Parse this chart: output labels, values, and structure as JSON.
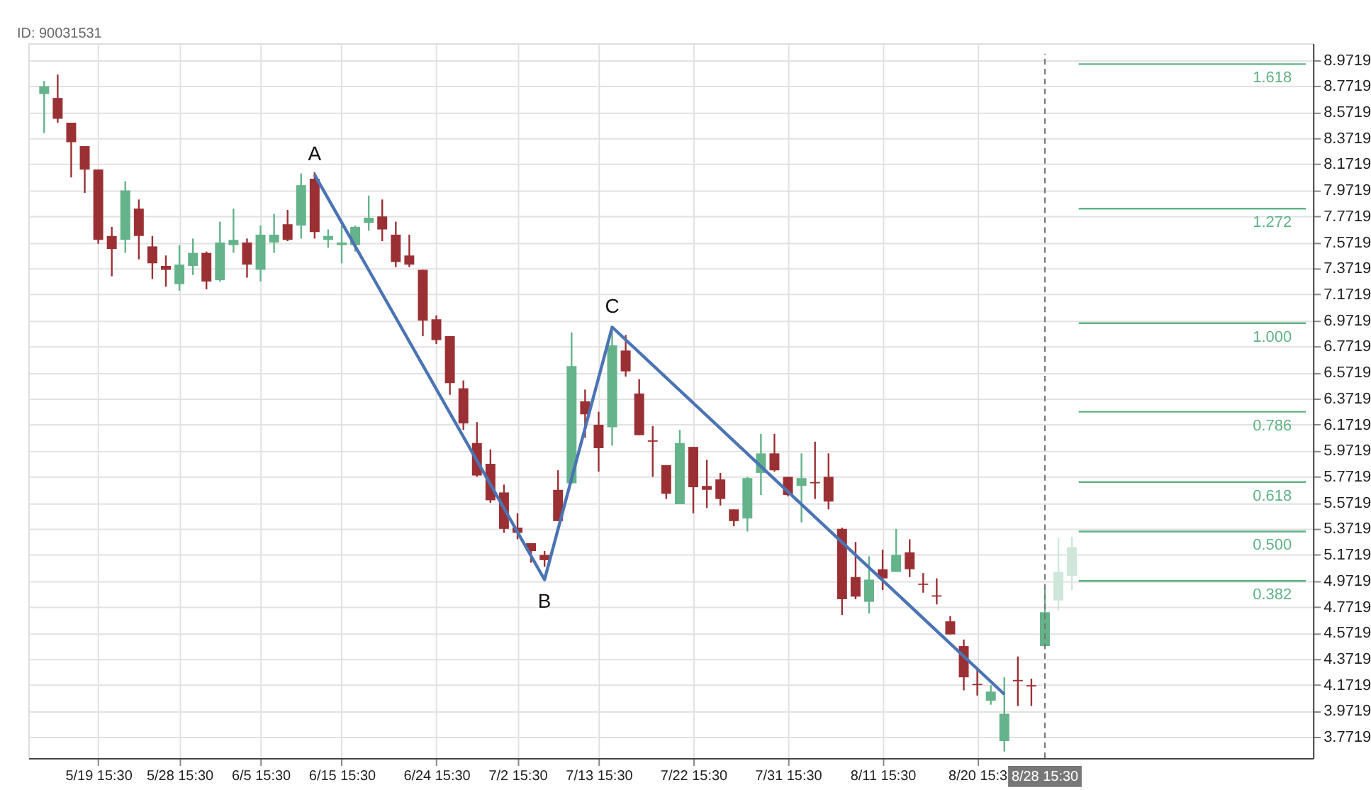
{
  "chart_data": {
    "type": "candlestick",
    "categories": [
      null,
      null,
      null,
      null,
      "5/19 15:30",
      null,
      null,
      null,
      null,
      null,
      "5/28 15:30",
      null,
      null,
      null,
      null,
      null,
      "6/5 15:30",
      null,
      null,
      null,
      null,
      null,
      "6/15 15:30",
      null,
      null,
      null,
      null,
      null,
      null,
      "6/24 15:30",
      null,
      null,
      null,
      null,
      null,
      "7/2 15:30",
      null,
      null,
      null,
      null,
      null,
      "7/13 15:30",
      null,
      null,
      null,
      null,
      null,
      null,
      "7/22 15:30",
      null,
      null,
      null,
      null,
      null,
      null,
      "7/31 15:30",
      null,
      null,
      null,
      null,
      null,
      null,
      "8/11 15:30",
      null,
      null,
      null,
      null,
      null,
      null,
      "8/20 15:3",
      null,
      null,
      null,
      null,
      "8/28 15:30",
      null,
      null,
      null,
      null,
      null,
      null,
      null,
      null,
      null,
      null,
      null,
      null,
      null,
      null,
      null,
      null,
      null,
      null,
      null
    ],
    "ohlc": [
      [
        8.71,
        8.81,
        8.41,
        8.77
      ],
      [
        8.68,
        8.86,
        8.49,
        8.52
      ],
      [
        8.49,
        8.49,
        8.07,
        8.34
      ],
      [
        8.31,
        8.31,
        7.95,
        8.13
      ],
      [
        8.13,
        8.13,
        7.56,
        7.59
      ],
      [
        7.62,
        7.69,
        7.31,
        7.52
      ],
      [
        7.59,
        8.04,
        7.49,
        7.97
      ],
      [
        7.83,
        7.9,
        7.44,
        7.62
      ],
      [
        7.54,
        7.62,
        7.29,
        7.41
      ],
      [
        7.39,
        7.47,
        7.23,
        7.36
      ],
      [
        7.25,
        7.55,
        7.2,
        7.4
      ],
      [
        7.39,
        7.6,
        7.32,
        7.49
      ],
      [
        7.49,
        7.5,
        7.21,
        7.27
      ],
      [
        7.28,
        7.73,
        7.27,
        7.57
      ],
      [
        7.55,
        7.83,
        7.49,
        7.59
      ],
      [
        7.57,
        7.6,
        7.3,
        7.4
      ],
      [
        7.36,
        7.7,
        7.27,
        7.63
      ],
      [
        7.57,
        7.79,
        7.49,
        7.63
      ],
      [
        7.71,
        7.82,
        7.58,
        7.59
      ],
      [
        7.7,
        8.1,
        7.6,
        8.01
      ],
      [
        8.06,
        8.11,
        7.6,
        7.65
      ],
      [
        7.59,
        7.67,
        7.53,
        7.62
      ],
      [
        7.55,
        7.7,
        7.41,
        7.57
      ],
      [
        7.55,
        7.7,
        7.5,
        7.69
      ],
      [
        7.72,
        7.93,
        7.66,
        7.76
      ],
      [
        7.77,
        7.9,
        7.58,
        7.67
      ],
      [
        7.63,
        7.73,
        7.38,
        7.42
      ],
      [
        7.47,
        7.63,
        7.38,
        7.4
      ],
      [
        7.36,
        7.36,
        6.85,
        6.97
      ],
      [
        6.98,
        7.01,
        6.79,
        6.82
      ],
      [
        6.85,
        6.85,
        6.4,
        6.49
      ],
      [
        6.45,
        6.51,
        6.13,
        6.18
      ],
      [
        6.03,
        6.19,
        5.77,
        5.78
      ],
      [
        5.87,
        5.98,
        5.57,
        5.59
      ],
      [
        5.65,
        5.71,
        5.34,
        5.37
      ],
      [
        5.38,
        5.49,
        5.29,
        5.34
      ],
      [
        5.26,
        5.26,
        5.11,
        5.2
      ],
      [
        5.17,
        5.2,
        5.08,
        5.13
      ],
      [
        5.67,
        5.82,
        5.43,
        5.43
      ],
      [
        5.72,
        6.88,
        5.72,
        6.62
      ],
      [
        6.35,
        6.44,
        6.07,
        6.25
      ],
      [
        6.17,
        6.27,
        5.81,
        5.99
      ],
      [
        6.15,
        6.89,
        6.01,
        6.78
      ],
      [
        6.74,
        6.86,
        6.54,
        6.58
      ],
      [
        6.41,
        6.52,
        6.09,
        6.09
      ],
      [
        6.05,
        6.16,
        5.77,
        6.04
      ],
      [
        5.86,
        5.86,
        5.6,
        5.64
      ],
      [
        5.56,
        6.13,
        5.56,
        6.03
      ],
      [
        6.0,
        6.0,
        5.49,
        5.69
      ],
      [
        5.7,
        5.9,
        5.53,
        5.67
      ],
      [
        5.75,
        5.8,
        5.55,
        5.6
      ],
      [
        5.52,
        5.52,
        5.39,
        5.43
      ],
      [
        5.45,
        5.77,
        5.35,
        5.76
      ],
      [
        5.8,
        6.1,
        5.63,
        5.95
      ],
      [
        5.95,
        6.1,
        5.81,
        5.82
      ],
      [
        5.77,
        5.77,
        5.62,
        5.63
      ],
      [
        5.7,
        5.95,
        5.42,
        5.76
      ],
      [
        5.73,
        6.04,
        5.6,
        5.72
      ],
      [
        5.77,
        5.95,
        5.52,
        5.58
      ],
      [
        5.37,
        5.38,
        4.71,
        4.83
      ],
      [
        5.0,
        5.27,
        4.83,
        4.85
      ],
      [
        4.81,
        5.16,
        4.72,
        4.98
      ],
      [
        5.06,
        5.21,
        4.9,
        4.99
      ],
      [
        5.04,
        5.37,
        5.04,
        5.17
      ],
      [
        5.19,
        5.29,
        5.0,
        5.06
      ],
      [
        4.95,
        5.03,
        4.88,
        4.94
      ],
      [
        4.86,
        4.99,
        4.79,
        4.85
      ],
      [
        4.66,
        4.7,
        4.56,
        4.56
      ],
      [
        4.47,
        4.52,
        4.13,
        4.23
      ],
      [
        4.18,
        4.29,
        4.09,
        4.17
      ],
      [
        4.05,
        4.17,
        4.02,
        4.12
      ],
      [
        3.74,
        4.23,
        3.66,
        3.95
      ],
      [
        4.21,
        4.39,
        4.01,
        4.2
      ],
      [
        4.17,
        4.22,
        4.01,
        4.16
      ],
      [
        4.47,
        4.92,
        4.47,
        4.73
      ],
      [
        4.82,
        5.3,
        4.74,
        5.04
      ],
      [
        5.01,
        5.31,
        4.9,
        5.23
      ],
      null,
      null,
      null,
      null,
      null,
      null,
      null,
      null,
      null,
      null,
      null,
      null,
      null,
      null,
      null,
      null,
      null
    ],
    "colors": [
      "#64b38a",
      "#9b3034",
      "#9b3034",
      "#9b3034",
      "#9b3034",
      "#9b3034",
      "#64b38a",
      "#9b3034",
      "#9b3034",
      "#9b3034",
      "#64b38a",
      "#64b38a",
      "#9b3034",
      "#64b38a",
      "#64b38a",
      "#9b3034",
      "#64b38a",
      "#64b38a",
      "#9b3034",
      "#64b38a",
      "#9b3034",
      "#64b38a",
      "#64b38a",
      "#64b38a",
      "#64b38a",
      "#9b3034",
      "#9b3034",
      "#9b3034",
      "#9b3034",
      "#9b3034",
      "#9b3034",
      "#9b3034",
      "#9b3034",
      "#9b3034",
      "#9b3034",
      "#9b3034",
      "#9b3034",
      "#9b3034",
      "#9b3034",
      "#64b38a",
      "#9b3034",
      "#9b3034",
      "#64b38a",
      "#9b3034",
      "#9b3034",
      "#9b3034",
      "#9b3034",
      "#64b38a",
      "#9b3034",
      "#9b3034",
      "#9b3034",
      "#9b3034",
      "#64b38a",
      "#64b38a",
      "#9b3034",
      "#9b3034",
      "#64b38a",
      "#9b3034",
      "#9b3034",
      "#9b3034",
      "#9b3034",
      "#64b38a",
      "#9b3034",
      "#64b38a",
      "#9b3034",
      "#9b3034",
      "#9b3034",
      "#9b3034",
      "#9b3034",
      "#9b3034",
      "#64b38a",
      "#64b38a",
      "#9b3034",
      "#9b3034",
      "#64b38a",
      "#cfe7da",
      "#cfe7da",
      null,
      null,
      null,
      null,
      null,
      null,
      null,
      null,
      null,
      null,
      null,
      null,
      null,
      null,
      null,
      null,
      null
    ],
    "series": [
      {
        "type": "line",
        "color": "#4a74b4",
        "values": [
          null,
          null,
          null,
          null,
          null,
          null,
          null,
          null,
          null,
          null,
          null,
          null,
          null,
          null,
          null,
          null,
          null,
          null,
          null,
          null,
          8.09,
          null,
          null,
          null,
          null,
          null,
          null,
          null,
          null,
          null,
          null,
          null,
          null,
          null,
          null,
          null,
          null,
          4.98,
          null,
          null,
          null,
          null,
          6.92,
          null,
          null,
          null,
          null,
          null,
          null,
          null,
          null,
          null,
          null,
          null,
          null,
          null,
          null,
          null,
          null,
          null,
          null,
          null,
          null,
          null,
          null,
          null,
          null,
          null,
          null,
          null,
          null,
          4.1,
          null,
          null,
          null,
          null,
          null,
          null,
          null,
          null,
          null,
          null,
          null,
          null,
          null,
          null,
          null,
          null,
          null,
          null,
          null,
          null,
          null,
          null
        ]
      }
    ],
    "ylim": [
      3.61,
      9.1
    ],
    "yticks": [
      3.7719,
      3.9719,
      4.1719,
      4.3719,
      4.5719,
      4.7719,
      4.9719,
      5.1719,
      5.3719,
      5.5719,
      5.7719,
      5.9719,
      6.1719,
      6.3719,
      6.5719,
      6.7719,
      6.9719,
      7.1719,
      7.3719,
      7.5719,
      7.7719,
      7.9719,
      8.1719,
      8.3719,
      8.5719,
      8.7719,
      8.9719
    ],
    "ref_lines": [
      {
        "axis": "y",
        "value": 8.94,
        "color": "#5fb285"
      },
      {
        "axis": "y",
        "value": 7.83,
        "color": "#5fb285"
      },
      {
        "axis": "y",
        "value": 6.95,
        "color": "#5fb285"
      },
      {
        "axis": "y",
        "value": 6.27,
        "color": "#5fb285"
      },
      {
        "axis": "y",
        "value": 5.73,
        "color": "#5fb285"
      },
      {
        "axis": "y",
        "value": 5.35,
        "color": "#5fb285"
      },
      {
        "axis": "y",
        "value": 4.97,
        "color": "#5fb285"
      },
      {
        "axis": "x",
        "value": "8/28 15:30",
        "color": "#777777",
        "line_style": "dashed"
      }
    ],
    "annotations": [
      "ID: 90031531",
      {
        "text": "A",
        "y": 8.09
      },
      {
        "text": "B",
        "y": 4.98
      },
      {
        "text": "C",
        "y": 6.92
      },
      {
        "text": "1.618",
        "y": 8.94
      },
      {
        "text": "1.272",
        "y": 7.83
      },
      {
        "text": "1.000",
        "y": 6.95
      },
      {
        "text": "0.786",
        "y": 6.27
      },
      {
        "text": "0.618",
        "y": 5.73
      },
      {
        "text": "0.500",
        "y": 5.35
      },
      {
        "text": "0.382",
        "y": 4.97
      }
    ],
    "grid": true
  }
}
